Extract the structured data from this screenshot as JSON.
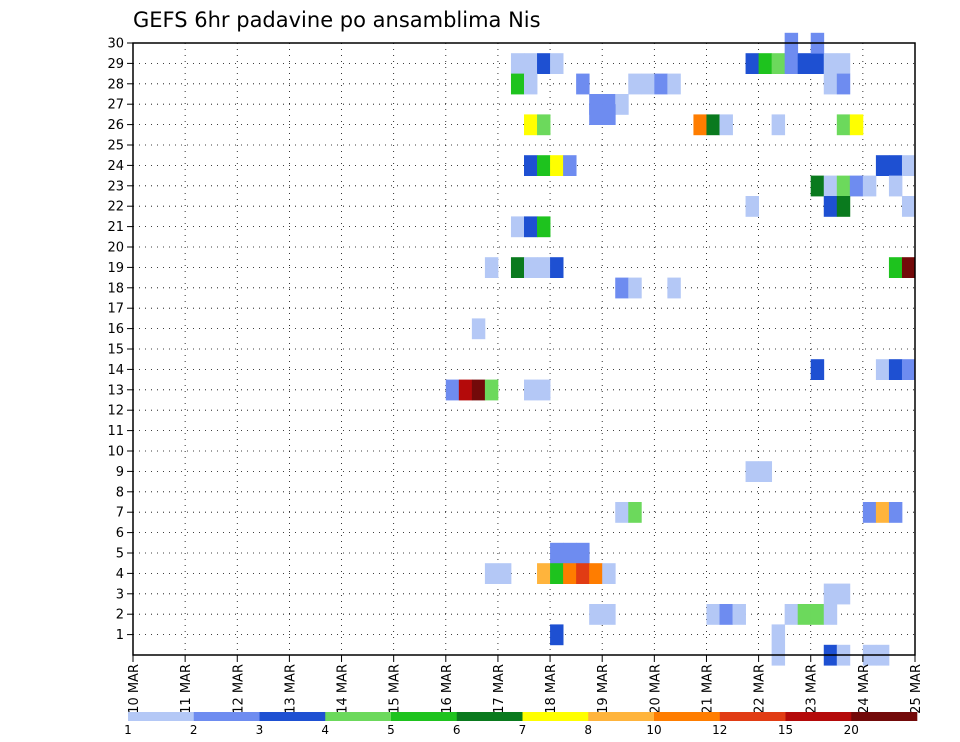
{
  "chart_data": {
    "type": "heatmap",
    "title": "GEFS 6hr padavine po ansamblima Nis",
    "xlabel": "",
    "ylabel": "",
    "y_ticks": [
      "1",
      "2",
      "3",
      "4",
      "5",
      "6",
      "7",
      "8",
      "9",
      "10",
      "11",
      "12",
      "13",
      "14",
      "15",
      "16",
      "17",
      "18",
      "19",
      "20",
      "21",
      "22",
      "23",
      "24",
      "25",
      "26",
      "27",
      "28",
      "29",
      "30"
    ],
    "x_ticks": [
      "10 MAR",
      "11 MAR",
      "12 MAR",
      "13 MAR",
      "14 MAR",
      "15 MAR",
      "16 MAR",
      "17 MAR",
      "18 MAR",
      "19 MAR",
      "20 MAR",
      "21 MAR",
      "22 MAR",
      "23 MAR",
      "24 MAR",
      "25 MAR"
    ],
    "x_range_days": [
      0,
      15
    ],
    "y_range": [
      0,
      30
    ],
    "time_step_hours": 6,
    "grid": true,
    "legend": {
      "placement": "bottom",
      "bins": [
        {
          "label": "1",
          "color": "#b4c8f6"
        },
        {
          "label": "2",
          "color": "#6e8cf0"
        },
        {
          "label": "3",
          "color": "#1e50d2"
        },
        {
          "label": "4",
          "color": "#6cd95c"
        },
        {
          "label": "5",
          "color": "#1ec31e"
        },
        {
          "label": "6",
          "color": "#0a7a1e"
        },
        {
          "label": "7",
          "color": "#ffff00"
        },
        {
          "label": "8",
          "color": "#ffb43c"
        },
        {
          "label": "10",
          "color": "#ff7d00"
        },
        {
          "label": "12",
          "color": "#e13c14"
        },
        {
          "label": "15",
          "color": "#b40a0a"
        },
        {
          "label": "20",
          "color": "#730a0a"
        }
      ]
    },
    "color_scale": [
      "#b4c8f6",
      "#6e8cf0",
      "#1e50d2",
      "#6cd95c",
      "#1ec31e",
      "#0a7a1e",
      "#ffff00",
      "#ffb43c",
      "#ff7d00",
      "#e13c14",
      "#b40a0a",
      "#730a0a"
    ],
    "cells": [
      {
        "d": 7.25,
        "m": 29,
        "c": 0
      },
      {
        "d": 7.5,
        "m": 29,
        "c": 0
      },
      {
        "d": 7.75,
        "m": 29,
        "c": 2
      },
      {
        "d": 8.0,
        "m": 29,
        "c": 0
      },
      {
        "d": 11.75,
        "m": 29,
        "c": 2
      },
      {
        "d": 12.0,
        "m": 29,
        "c": 4
      },
      {
        "d": 12.25,
        "m": 29,
        "c": 3
      },
      {
        "d": 12.5,
        "m": 29,
        "c": 1
      },
      {
        "d": 12.75,
        "m": 29,
        "c": 2
      },
      {
        "d": 13.0,
        "m": 29,
        "c": 2
      },
      {
        "d": 13.25,
        "m": 29,
        "c": 0
      },
      {
        "d": 13.5,
        "m": 29,
        "c": 0
      },
      {
        "d": 12.5,
        "m": 30,
        "c": 1
      },
      {
        "d": 13.0,
        "m": 30,
        "c": 1
      },
      {
        "d": 7.25,
        "m": 28,
        "c": 4
      },
      {
        "d": 7.5,
        "m": 28,
        "c": 0
      },
      {
        "d": 8.5,
        "m": 28,
        "c": 1
      },
      {
        "d": 9.5,
        "m": 28,
        "c": 0
      },
      {
        "d": 9.75,
        "m": 28,
        "c": 0
      },
      {
        "d": 10.0,
        "m": 28,
        "c": 1
      },
      {
        "d": 10.25,
        "m": 28,
        "c": 0
      },
      {
        "d": 13.25,
        "m": 28,
        "c": 0
      },
      {
        "d": 13.5,
        "m": 28,
        "c": 1
      },
      {
        "d": 8.75,
        "m": 27,
        "c": 1
      },
      {
        "d": 9.0,
        "m": 27,
        "c": 1
      },
      {
        "d": 9.25,
        "m": 27,
        "c": 0
      },
      {
        "d": 8.75,
        "m": 26.5,
        "c": 1
      },
      {
        "d": 9.0,
        "m": 26.5,
        "c": 1
      },
      {
        "d": 7.5,
        "m": 26,
        "c": 6
      },
      {
        "d": 7.75,
        "m": 26,
        "c": 3
      },
      {
        "d": 10.75,
        "m": 26,
        "c": 8
      },
      {
        "d": 11.0,
        "m": 26,
        "c": 5
      },
      {
        "d": 11.25,
        "m": 26,
        "c": 0
      },
      {
        "d": 12.25,
        "m": 26,
        "c": 0
      },
      {
        "d": 13.5,
        "m": 26,
        "c": 3
      },
      {
        "d": 13.75,
        "m": 26,
        "c": 6
      },
      {
        "d": 7.5,
        "m": 24,
        "c": 2
      },
      {
        "d": 7.75,
        "m": 24,
        "c": 4
      },
      {
        "d": 8.0,
        "m": 24,
        "c": 6
      },
      {
        "d": 8.25,
        "m": 24,
        "c": 1
      },
      {
        "d": 14.25,
        "m": 24,
        "c": 2
      },
      {
        "d": 14.5,
        "m": 24,
        "c": 2
      },
      {
        "d": 14.75,
        "m": 24,
        "c": 0
      },
      {
        "d": 13.0,
        "m": 23,
        "c": 5
      },
      {
        "d": 13.25,
        "m": 23,
        "c": 0
      },
      {
        "d": 13.5,
        "m": 23,
        "c": 3
      },
      {
        "d": 13.75,
        "m": 23,
        "c": 1
      },
      {
        "d": 14.0,
        "m": 23,
        "c": 0
      },
      {
        "d": 14.5,
        "m": 23,
        "c": 0
      },
      {
        "d": 13.25,
        "m": 22,
        "c": 2
      },
      {
        "d": 13.5,
        "m": 22,
        "c": 5
      },
      {
        "d": 11.75,
        "m": 22,
        "c": 0
      },
      {
        "d": 14.75,
        "m": 22,
        "c": 0
      },
      {
        "d": 7.25,
        "m": 21,
        "c": 0
      },
      {
        "d": 7.5,
        "m": 21,
        "c": 2
      },
      {
        "d": 7.75,
        "m": 21,
        "c": 4
      },
      {
        "d": 6.75,
        "m": 19,
        "c": 0
      },
      {
        "d": 7.25,
        "m": 19,
        "c": 5
      },
      {
        "d": 7.5,
        "m": 19,
        "c": 0
      },
      {
        "d": 7.75,
        "m": 19,
        "c": 0
      },
      {
        "d": 8.0,
        "m": 19,
        "c": 2
      },
      {
        "d": 14.5,
        "m": 19,
        "c": 4
      },
      {
        "d": 14.75,
        "m": 19,
        "c": 11
      },
      {
        "d": 9.25,
        "m": 18,
        "c": 1
      },
      {
        "d": 9.5,
        "m": 18,
        "c": 0
      },
      {
        "d": 10.25,
        "m": 18,
        "c": 0
      },
      {
        "d": 6.5,
        "m": 16,
        "c": 0
      },
      {
        "d": 13.0,
        "m": 14,
        "c": 2
      },
      {
        "d": 14.25,
        "m": 14,
        "c": 0
      },
      {
        "d": 14.5,
        "m": 14,
        "c": 2
      },
      {
        "d": 14.75,
        "m": 14,
        "c": 1
      },
      {
        "d": 6.0,
        "m": 13,
        "c": 1
      },
      {
        "d": 6.25,
        "m": 13,
        "c": 10
      },
      {
        "d": 6.5,
        "m": 13,
        "c": 11
      },
      {
        "d": 6.75,
        "m": 13,
        "c": 3
      },
      {
        "d": 7.5,
        "m": 13,
        "c": 0
      },
      {
        "d": 7.75,
        "m": 13,
        "c": 0
      },
      {
        "d": 11.75,
        "m": 9,
        "c": 0
      },
      {
        "d": 12.0,
        "m": 9,
        "c": 0
      },
      {
        "d": 9.25,
        "m": 7,
        "c": 0
      },
      {
        "d": 9.5,
        "m": 7,
        "c": 3
      },
      {
        "d": 14.0,
        "m": 7,
        "c": 1
      },
      {
        "d": 14.25,
        "m": 7,
        "c": 7
      },
      {
        "d": 14.5,
        "m": 7,
        "c": 1
      },
      {
        "d": 8.0,
        "m": 5,
        "c": 1
      },
      {
        "d": 8.25,
        "m": 5,
        "c": 1
      },
      {
        "d": 8.5,
        "m": 5,
        "c": 1
      },
      {
        "d": 6.75,
        "m": 4,
        "c": 0
      },
      {
        "d": 7.0,
        "m": 4,
        "c": 0
      },
      {
        "d": 7.75,
        "m": 4,
        "c": 7
      },
      {
        "d": 8.0,
        "m": 4,
        "c": 4
      },
      {
        "d": 8.25,
        "m": 4,
        "c": 8
      },
      {
        "d": 8.5,
        "m": 4,
        "c": 9
      },
      {
        "d": 8.75,
        "m": 4,
        "c": 8
      },
      {
        "d": 9.0,
        "m": 4,
        "c": 0
      },
      {
        "d": 13.25,
        "m": 3,
        "c": 0
      },
      {
        "d": 13.5,
        "m": 3,
        "c": 0
      },
      {
        "d": 8.75,
        "m": 2,
        "c": 0
      },
      {
        "d": 9.0,
        "m": 2,
        "c": 0
      },
      {
        "d": 11.0,
        "m": 2,
        "c": 0
      },
      {
        "d": 11.25,
        "m": 2,
        "c": 1
      },
      {
        "d": 11.5,
        "m": 2,
        "c": 0
      },
      {
        "d": 12.5,
        "m": 2,
        "c": 0
      },
      {
        "d": 12.75,
        "m": 2,
        "c": 3
      },
      {
        "d": 13.0,
        "m": 2,
        "c": 3
      },
      {
        "d": 13.25,
        "m": 2,
        "c": 0
      },
      {
        "d": 8.0,
        "m": 1,
        "c": 2
      },
      {
        "d": 12.25,
        "m": 1,
        "c": 0
      },
      {
        "d": 12.25,
        "m": 0,
        "c": 0
      },
      {
        "d": 13.25,
        "m": 0,
        "c": 2
      },
      {
        "d": 13.5,
        "m": 0,
        "c": 0
      },
      {
        "d": 14.0,
        "m": 0,
        "c": 0
      },
      {
        "d": 14.25,
        "m": 0,
        "c": 0
      }
    ]
  }
}
